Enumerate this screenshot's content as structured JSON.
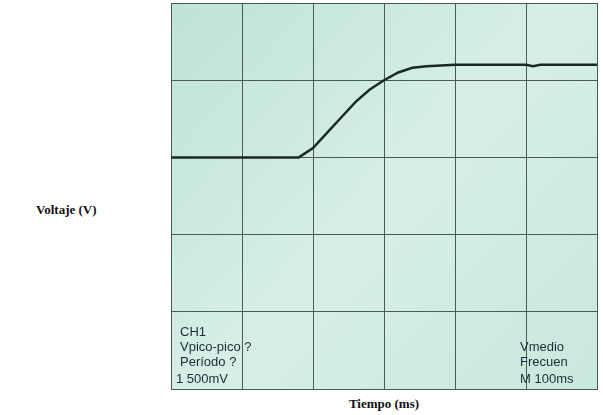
{
  "chart_data": {
    "type": "line",
    "x_label": "Tiempo (ms)",
    "y_label": "Voltaje (V)",
    "x": [
      0,
      180,
      200,
      220,
      240,
      260,
      280,
      300,
      320,
      340,
      360,
      400,
      450,
      500,
      510,
      520,
      600
    ],
    "values": [
      1.5,
      1.5,
      1.56,
      1.66,
      1.76,
      1.86,
      1.94,
      2.0,
      2.05,
      2.08,
      2.09,
      2.1,
      2.1,
      2.1,
      2.09,
      2.1,
      2.1
    ],
    "color": "#1a2a20",
    "xlim": [
      0,
      600
    ],
    "xticks": [
      0,
      100,
      200,
      300,
      400,
      500,
      600
    ],
    "ylim": [
      0,
      2.5
    ],
    "yticks": [
      0,
      0.5,
      1,
      1.5,
      2,
      2.5
    ],
    "grid": true,
    "tick_labels": false,
    "annotations": [
      "CH1",
      "Vpico-pico ?",
      "Período ?",
      "1 500mV",
      "Vmedio",
      "Frecuen",
      "M 100ms"
    ]
  }
}
